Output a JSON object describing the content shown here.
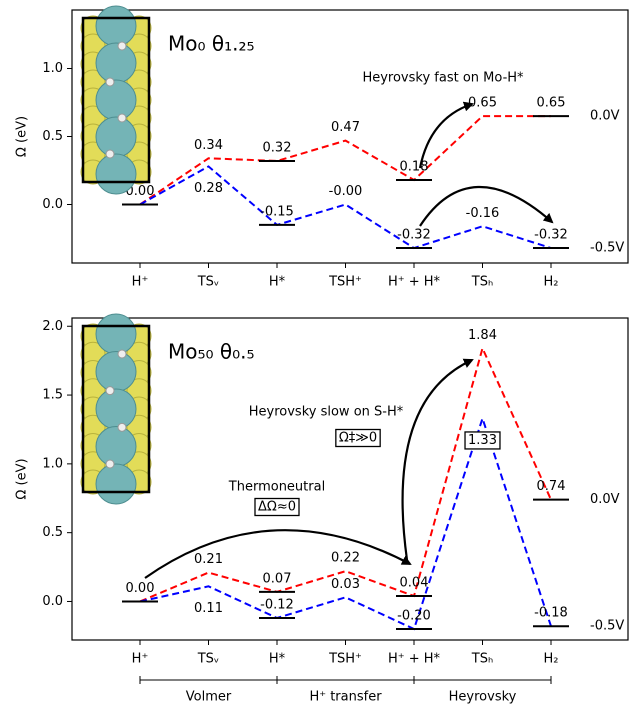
{
  "chart_data": [
    {
      "type": "line",
      "title": "Mo₀ θ₁.₂₅",
      "ylabel": "Ω (eV)",
      "categories": [
        "H⁺",
        "TSᵥ",
        "H*",
        "TSH⁺",
        "H⁺ + H*",
        "TSₕ",
        "H₂"
      ],
      "ylim": [
        -0.43,
        1.43
      ],
      "yticks": [
        {
          "value": 0,
          "label": "0.0"
        },
        {
          "value": 0.5,
          "label": "0.5"
        },
        {
          "value": 1,
          "label": "1.0"
        }
      ],
      "series": [
        {
          "name": "0.0V",
          "color": "#ff0000",
          "values": [
            0,
            0.34,
            0.32,
            0.47,
            0.18,
            0.65,
            0.65
          ],
          "value_labels": [
            "0.00",
            "0.34",
            "0.32",
            "0.47",
            "0.18",
            "0.65",
            "0.65"
          ]
        },
        {
          "name": "-0.5V",
          "color": "#0000ff",
          "values": [
            0,
            0.28,
            -0.15,
            0,
            -0.32,
            -0.16,
            -0.32
          ],
          "value_labels": [
            null,
            "0.28",
            "-0.15",
            "-0.00",
            "-0.32",
            "-0.16",
            "-0.32"
          ]
        }
      ],
      "annotations": [
        "Heyrovsky fast on Mo-H*"
      ]
    },
    {
      "type": "line",
      "title": "Mo₅₀ θ₀.₅",
      "ylabel": "Ω (eV)",
      "categories": [
        "H⁺",
        "TSᵥ",
        "H*",
        "TSH⁺",
        "H⁺ + H*",
        "TSₕ",
        "H₂"
      ],
      "ylim": [
        -0.28,
        2.06
      ],
      "yticks": [
        {
          "value": 0,
          "label": "0.0"
        },
        {
          "value": 0.5,
          "label": "0.5"
        },
        {
          "value": 1,
          "label": "1.0"
        },
        {
          "value": 1.5,
          "label": "1.5"
        },
        {
          "value": 2,
          "label": "2.0"
        }
      ],
      "series": [
        {
          "name": "0.0V",
          "color": "#ff0000",
          "values": [
            0,
            0.21,
            0.07,
            0.22,
            0.04,
            1.84,
            0.74
          ],
          "value_labels": [
            "0.00",
            "0.21",
            "0.07",
            "0.22",
            "0.04",
            "1.84",
            "0.74"
          ]
        },
        {
          "name": "-0.5V",
          "color": "#0000ff",
          "values": [
            0,
            0.11,
            -0.12,
            0.03,
            -0.2,
            1.33,
            -0.18
          ],
          "value_labels": [
            null,
            "0.11",
            "-0.12",
            "0.03",
            "-0.20",
            "1.33",
            "-0.18"
          ]
        }
      ],
      "annotations": [
        "Heyrovsky slow on S-H*",
        "Ω‡≫0",
        "Thermoneutral",
        "ΔΩ≈0"
      ],
      "phases": [
        "Volmer",
        "H⁺ transfer",
        "Heyrovsky"
      ]
    }
  ]
}
